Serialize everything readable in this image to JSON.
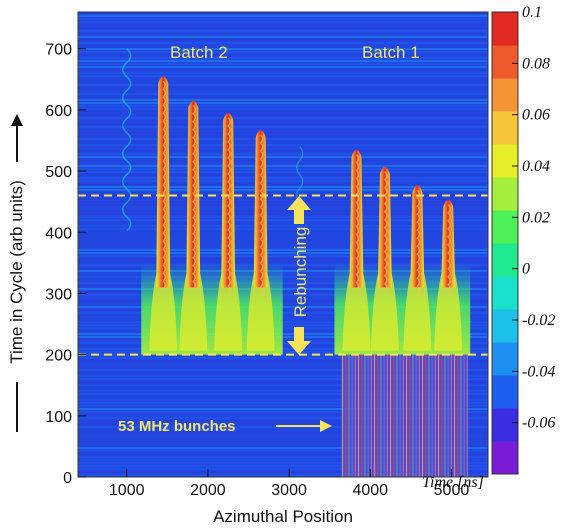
{
  "chart_data": {
    "type": "heatmap",
    "title": "",
    "xlabel": "Azimuthal Position",
    "xunit_label": "Time [ns]",
    "ylabel": "Time in Cycle (arb units)",
    "xlim": [
      400,
      5450
    ],
    "ylim": [
      0,
      760
    ],
    "x_ticks": [
      1000,
      2000,
      3000,
      4000,
      5000
    ],
    "y_ticks": [
      0,
      100,
      200,
      300,
      400,
      500,
      600,
      700
    ],
    "colorbar": {
      "range": [
        -0.08,
        0.1
      ],
      "ticks": [
        0.1,
        0.08,
        0.06,
        0.04,
        0.02,
        0,
        -0.02,
        -0.04,
        -0.06
      ],
      "tick_labels": [
        "0.1",
        "0.08",
        "0.06",
        "0.04",
        "0.02",
        "0",
        "-0.02",
        "-0.04",
        "-0.06"
      ],
      "colors_low_to_high": [
        "#7a1cd6",
        "#3a2ee0",
        "#1f5cf0",
        "#1d8ff0",
        "#1cc0e8",
        "#19e0c8",
        "#20e890",
        "#4fef5a",
        "#a4ef3c",
        "#e6ee2a",
        "#f7c53a",
        "#f49436",
        "#ee5a2c",
        "#e22a22"
      ]
    },
    "background_color": "#2246e0",
    "dashed_lines_y": [
      200,
      460
    ],
    "dashed_line_color": "#f7e45a",
    "batches": [
      {
        "label": "Batch 2",
        "bunch_x": [
          1450,
          1820,
          2250,
          2650
        ],
        "top_y": [
          660,
          620,
          600,
          572
        ]
      },
      {
        "label": "Batch 1",
        "bunch_x": [
          3830,
          4180,
          4580,
          4960
        ],
        "top_y": [
          540,
          512,
          482,
          458
        ]
      }
    ],
    "start_y": 200,
    "tail_y": 310,
    "low_region_x": [
      3650,
      5200
    ],
    "annotations": {
      "batch2": "Batch 2",
      "batch1": "Batch 1",
      "rebunching": "Rebunching",
      "bunches": "53 MHz bunches"
    }
  }
}
